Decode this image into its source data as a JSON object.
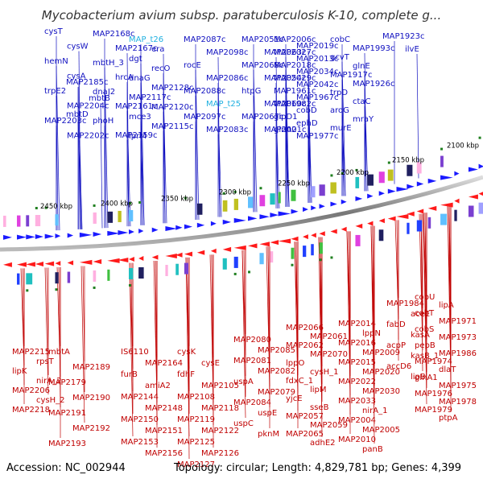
{
  "title": "Mycobacterium avium subsp. paratuberculosis K-10, complete g...",
  "footer": {
    "accession": "Accession: NC_002944",
    "topology": "Topology: circular; Length: 4,829,781 bp; Genes: 4,399"
  },
  "colors": {
    "forward_strand": "#1a1aff",
    "reverse_strand": "#ff1a1a",
    "forward_label": "#1010c0",
    "reverse_label": "#c00000",
    "highlight_label": "#20b0e0",
    "backbone": "#888888"
  },
  "kbp_ticks": [
    "2450 kbp",
    "2400 kbp",
    "2350 kbp",
    "2300 kbp",
    "2250 kbp",
    "2200 kbp",
    "2150 kbp",
    "2100 kbp"
  ],
  "top_labels": [
    {
      "text": "cysT"
    },
    {
      "text": "cysW"
    },
    {
      "text": "hemN"
    },
    {
      "text": "cysA"
    },
    {
      "text": "trpE2"
    },
    {
      "text": "MAP2204c"
    },
    {
      "text": "MAP2203c"
    },
    {
      "text": "MAP2202c"
    },
    {
      "text": "MAP2185c"
    },
    {
      "text": "mbtB"
    },
    {
      "text": "mbtD"
    },
    {
      "text": "MAP2168c"
    },
    {
      "text": "MAP2167c"
    },
    {
      "text": "mbtH_3"
    },
    {
      "text": "hrcA"
    },
    {
      "text": "dnaJ2"
    },
    {
      "text": "MAP2161c"
    },
    {
      "text": "phoH"
    },
    {
      "text": "MAP2159c"
    },
    {
      "text": "MAP_t26",
      "highlight": true
    },
    {
      "text": "era"
    },
    {
      "text": "dgt"
    },
    {
      "text": "recO"
    },
    {
      "text": "dnaG"
    },
    {
      "text": "MAP2128c"
    },
    {
      "text": "MAP2117c"
    },
    {
      "text": "MAP2120c"
    },
    {
      "text": "mce3"
    },
    {
      "text": "MAP2115c"
    },
    {
      "text": "lprM"
    },
    {
      "text": "MAP2087c"
    },
    {
      "text": "MAP2098c"
    },
    {
      "text": "rocE"
    },
    {
      "text": "MAP2086c"
    },
    {
      "text": "MAP2088c"
    },
    {
      "text": "MAP_t25",
      "highlight": true
    },
    {
      "text": "MAP2097c"
    },
    {
      "text": "MAP2083c"
    },
    {
      "text": "MAP2051c"
    },
    {
      "text": "MAP2063c"
    },
    {
      "text": "MAP2068c"
    },
    {
      "text": "MAP2054c"
    },
    {
      "text": "htpG"
    },
    {
      "text": "MAP2060c"
    },
    {
      "text": "MAP2067c"
    },
    {
      "text": "MAP2001c"
    },
    {
      "text": "MAP2006c"
    },
    {
      "text": "MAP2019c"
    },
    {
      "text": "MAP2027c"
    },
    {
      "text": "MAP2013c"
    },
    {
      "text": "MAP2018c"
    },
    {
      "text": "MAP2034c"
    },
    {
      "text": "MAP2029c"
    },
    {
      "text": "MAP2042c"
    },
    {
      "text": "MAP1961c"
    },
    {
      "text": "MAP1967c"
    },
    {
      "text": "MAP1982c"
    },
    {
      "text": "cobD"
    },
    {
      "text": "glpD1"
    },
    {
      "text": "ephD"
    },
    {
      "text": "glnA2"
    },
    {
      "text": "MAP1977c"
    },
    {
      "text": "cobC"
    },
    {
      "text": "MAP1993c"
    },
    {
      "text": "gcvT"
    },
    {
      "text": "glnE"
    },
    {
      "text": "MAP1917c"
    },
    {
      "text": "MAP1926c"
    },
    {
      "text": "trpD"
    },
    {
      "text": "ctaC"
    },
    {
      "text": "aroG"
    },
    {
      "text": "mraY"
    },
    {
      "text": "murE"
    },
    {
      "text": "MAP1923c"
    },
    {
      "text": "ilvE"
    }
  ],
  "bottom_labels": [
    {
      "text": "MAP2215"
    },
    {
      "text": "rpsT"
    },
    {
      "text": "lipK"
    },
    {
      "text": "nirA_2"
    },
    {
      "text": "MAP2206"
    },
    {
      "text": "cysH_2"
    },
    {
      "text": "MAP2218"
    },
    {
      "text": "mbtA"
    },
    {
      "text": "MAP2189"
    },
    {
      "text": "MAP2179"
    },
    {
      "text": "MAP2190"
    },
    {
      "text": "MAP2191"
    },
    {
      "text": "MAP2192"
    },
    {
      "text": "MAP2193"
    },
    {
      "text": "IS6110"
    },
    {
      "text": "MAP2164"
    },
    {
      "text": "furB"
    },
    {
      "text": "amiA2"
    },
    {
      "text": "MAP2144"
    },
    {
      "text": "MAP2148"
    },
    {
      "text": "MAP2150"
    },
    {
      "text": "MAP2151"
    },
    {
      "text": "MAP2153"
    },
    {
      "text": "MAP2156"
    },
    {
      "text": "cysK"
    },
    {
      "text": "cysE"
    },
    {
      "text": "fdhF"
    },
    {
      "text": "MAP2105"
    },
    {
      "text": "MAP2108"
    },
    {
      "text": "MAP2118"
    },
    {
      "text": "MAP2119"
    },
    {
      "text": "MAP2122"
    },
    {
      "text": "MAP2125"
    },
    {
      "text": "MAP2126"
    },
    {
      "text": "MAP2127"
    },
    {
      "text": "MAP2080"
    },
    {
      "text": "MAP2085"
    },
    {
      "text": "MAP2081"
    },
    {
      "text": "MAP2082"
    },
    {
      "text": "uspA"
    },
    {
      "text": "MAP2079"
    },
    {
      "text": "MAP2084"
    },
    {
      "text": "uspE"
    },
    {
      "text": "uspC"
    },
    {
      "text": "pknM"
    },
    {
      "text": "MAP2066"
    },
    {
      "text": "MAP2061"
    },
    {
      "text": "MAP2062"
    },
    {
      "text": "MAP2070"
    },
    {
      "text": "lppO"
    },
    {
      "text": "cysH_1"
    },
    {
      "text": "fdxC_1"
    },
    {
      "text": "lipM"
    },
    {
      "text": "yjcE"
    },
    {
      "text": "sseB"
    },
    {
      "text": "MAP2057"
    },
    {
      "text": "MAP2059"
    },
    {
      "text": "MAP2065"
    },
    {
      "text": "adhE2"
    },
    {
      "text": "MAP2014"
    },
    {
      "text": "lppN"
    },
    {
      "text": "MAP2016"
    },
    {
      "text": "MAP2009"
    },
    {
      "text": "MAP2015"
    },
    {
      "text": "MAP2020"
    },
    {
      "text": "MAP2022"
    },
    {
      "text": "MAP2030"
    },
    {
      "text": "MAP2033"
    },
    {
      "text": "nirA_1"
    },
    {
      "text": "MAP2004"
    },
    {
      "text": "MAP2005"
    },
    {
      "text": "MAP2010"
    },
    {
      "text": "panB"
    },
    {
      "text": "MAP1984"
    },
    {
      "text": "aceE"
    },
    {
      "text": "fabD"
    },
    {
      "text": "kasA"
    },
    {
      "text": "acpP"
    },
    {
      "text": "kasB_1"
    },
    {
      "text": "accD6"
    },
    {
      "text": "lipB"
    },
    {
      "text": "cobU"
    },
    {
      "text": "lipA"
    },
    {
      "text": "cobT"
    },
    {
      "text": "MAP1971"
    },
    {
      "text": "cobS"
    },
    {
      "text": "MAP1973"
    },
    {
      "text": "pepB"
    },
    {
      "text": "MAP1986"
    },
    {
      "text": "MAP1974"
    },
    {
      "text": "dlaT"
    },
    {
      "text": "glnA1"
    },
    {
      "text": "MAP1975"
    },
    {
      "text": "MAP1976"
    },
    {
      "text": "MAP1978"
    },
    {
      "text": "MAP1979"
    },
    {
      "text": "ptpA"
    }
  ]
}
